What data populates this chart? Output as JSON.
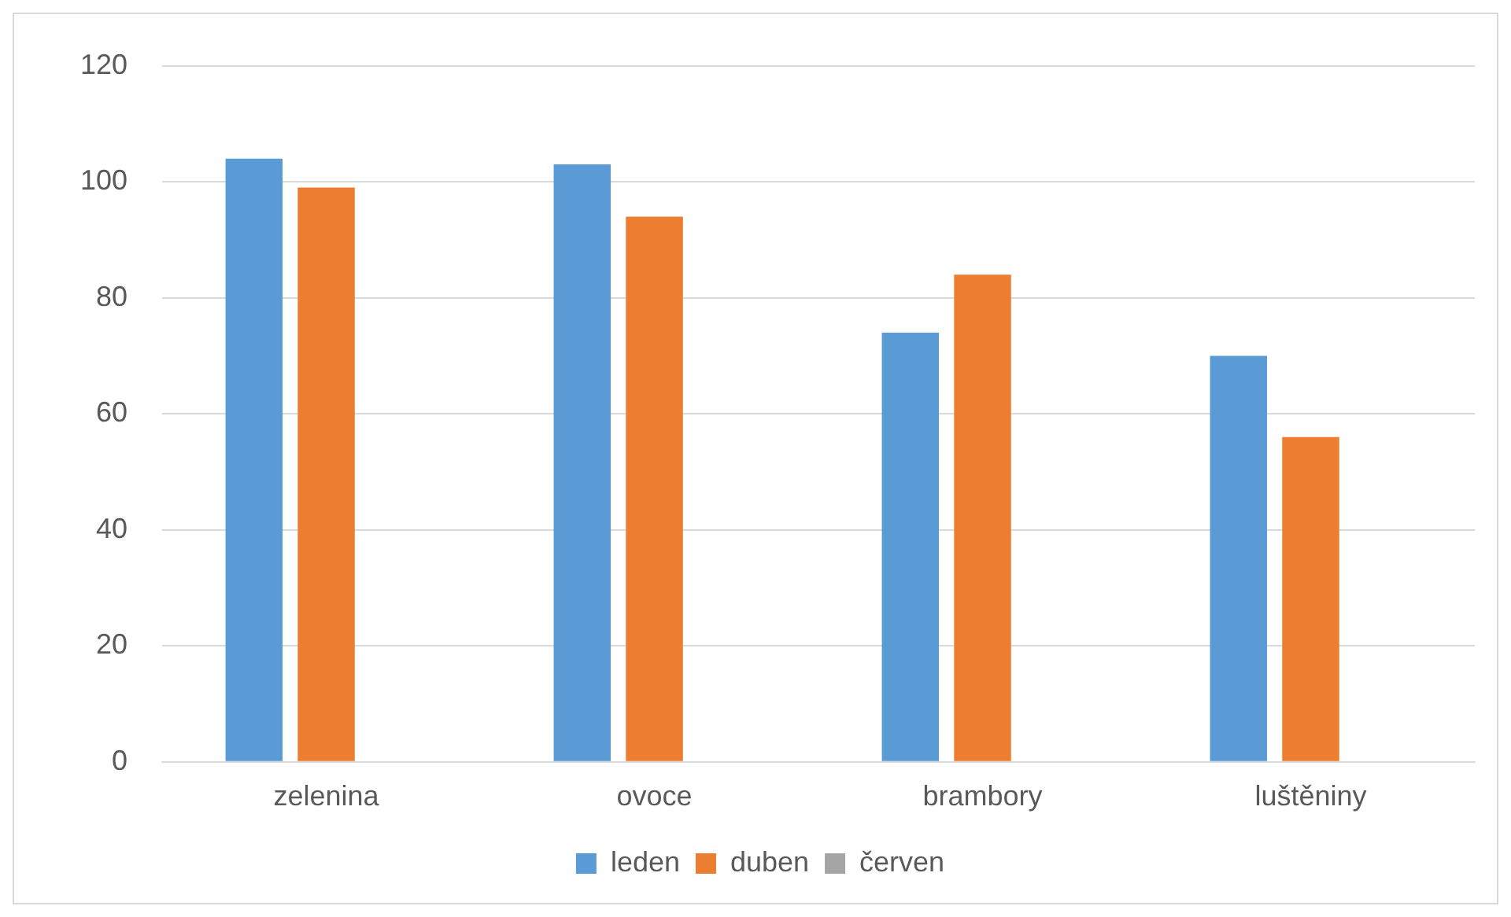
{
  "chart_data": {
    "type": "bar",
    "categories": [
      "zelenina",
      "ovoce",
      "brambory",
      "luštěniny"
    ],
    "series": [
      {
        "name": "leden",
        "color": "#5b9bd5",
        "values": [
          104,
          103,
          74,
          70
        ]
      },
      {
        "name": "duben",
        "color": "#ed7d31",
        "values": [
          99,
          94,
          84,
          56
        ]
      },
      {
        "name": "červen",
        "color": "#a5a5a5",
        "values": [
          null,
          null,
          null,
          null
        ]
      }
    ],
    "ylim": [
      0,
      120
    ],
    "yticks": [
      0,
      20,
      40,
      60,
      80,
      100,
      120
    ],
    "grid": "y",
    "legend": "bottom"
  }
}
